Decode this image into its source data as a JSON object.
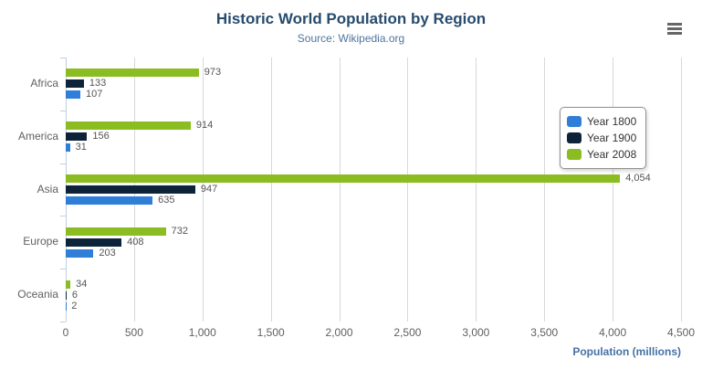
{
  "title": "Historic World Population by Region",
  "subtitle": "Source: Wikipedia.org",
  "menu": {
    "icon": "hamburger-menu-icon"
  },
  "chart_data": {
    "type": "bar",
    "orientation": "horizontal",
    "title": "Historic World Population by Region",
    "subtitle": "Source: Wikipedia.org",
    "categories": [
      "Africa",
      "America",
      "Asia",
      "Europe",
      "Oceania"
    ],
    "series": [
      {
        "name": "Year 1800",
        "color": "#2f7ed8",
        "values": [
          107,
          31,
          635,
          203,
          2
        ]
      },
      {
        "name": "Year 1900",
        "color": "#0d233a",
        "values": [
          133,
          156,
          947,
          408,
          6
        ]
      },
      {
        "name": "Year 2008",
        "color": "#8bbc21",
        "values": [
          973,
          914,
          4054,
          732,
          34
        ]
      }
    ],
    "xlabel": "Population (millions)",
    "xlim": [
      0,
      4500
    ],
    "x_tick_values": [
      0,
      500,
      1000,
      1500,
      2000,
      2500,
      3000,
      3500,
      4000,
      4500
    ],
    "x_tick_labels": [
      "0",
      "500",
      "1,000",
      "1,500",
      "2,000",
      "2,500",
      "3,000",
      "3,500",
      "4,000",
      "4,500"
    ],
    "grid": true,
    "legend_position": "right",
    "data_labels": true
  },
  "colors": {
    "title": "#274b6d",
    "subtitle": "#4d759e",
    "axis_title": "#4572a7",
    "tick_label": "#606060",
    "category_label": "#606060",
    "value_label": "#555555",
    "gridline": "#d8d8d8",
    "axis_line": "#c0d0e0",
    "menu_icon": "#666666",
    "legend_border": "#909090",
    "background": "#ffffff"
  }
}
